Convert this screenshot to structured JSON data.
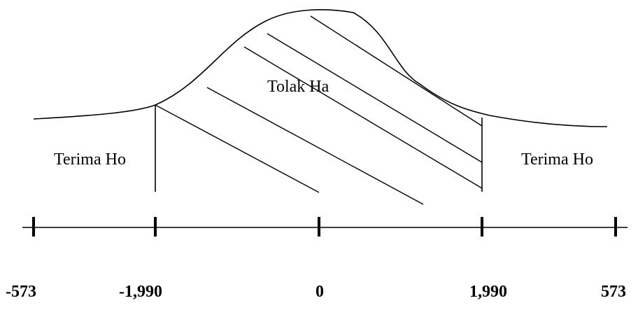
{
  "regions": {
    "left_accept": "Terima Ho",
    "center_reject": "Tolak Ha",
    "right_accept": "Terima Ho"
  },
  "axis": {
    "ticks": [
      {
        "label": "-573"
      },
      {
        "label": "-1,990"
      },
      {
        "label": "0"
      },
      {
        "label": "1,990"
      },
      {
        "label": "573"
      }
    ]
  }
}
